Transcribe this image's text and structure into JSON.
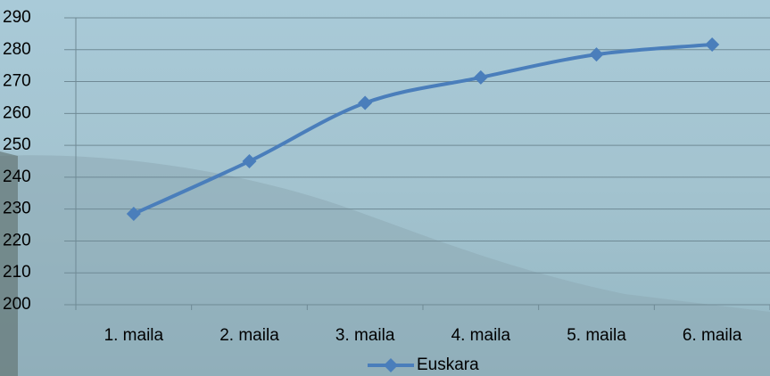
{
  "chart_data": {
    "type": "line",
    "categories": [
      "1. maila",
      "2. maila",
      "3. maila",
      "4. maila",
      "5. maila",
      "6. maila"
    ],
    "series": [
      {
        "name": "Euskara",
        "color": "#4a7ebb",
        "values": [
          228.5,
          245,
          263.3,
          271.3,
          278.5,
          281.6
        ]
      }
    ],
    "ylim": [
      200,
      290
    ],
    "yticks": [
      200,
      210,
      220,
      230,
      240,
      250,
      260,
      270,
      280,
      290
    ],
    "grid": true,
    "legend": "bottom"
  }
}
